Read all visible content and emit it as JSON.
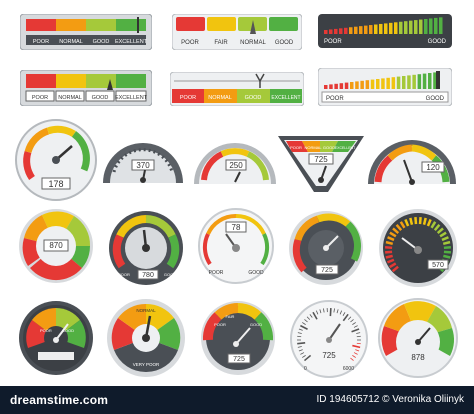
{
  "palette": {
    "red": "#e53935",
    "orange": "#f39c12",
    "yellow": "#f1c40f",
    "green": "#52b043",
    "darkgrey": "#4a4f55",
    "lightgrey": "#d7dadd"
  },
  "bars": {
    "b1": {
      "labels": [
        "POOR",
        "NORMAL",
        "GOOD",
        "EXCELLENT"
      ]
    },
    "b2": {
      "labels": [
        "POOR",
        "FAIR",
        "NORMAL",
        "GOOD"
      ]
    },
    "b3": {
      "left": "POOR",
      "right": "GOOD"
    },
    "b4": {
      "labels": [
        "POOR",
        "NORMAL",
        "GOOD",
        "EXCELLENT"
      ]
    },
    "b5": {
      "labels": [
        "POOR",
        "NORMAL",
        "GOOD",
        "EXCELLENT"
      ]
    },
    "b6": {
      "left": "POOR",
      "right": "GOOD"
    }
  },
  "gauges": {
    "r1": [
      "178",
      "370",
      "250",
      "725",
      "120"
    ],
    "r2": [
      "870",
      "780",
      "78",
      "725",
      "570"
    ],
    "r3": [
      "",
      "",
      "725",
      "725",
      "878"
    ]
  },
  "gauge_labels": {
    "poor": "POOR",
    "good": "GOOD",
    "fair": "FAIR",
    "normal": "NORMAL",
    "excellent": "EXCELLENT",
    "very_poor": "VERY POOR",
    "low": "0",
    "high": "6000"
  },
  "footer": {
    "left": "dreamstime.com",
    "right": "ID 194605712 © Veronika Oliinyk"
  }
}
